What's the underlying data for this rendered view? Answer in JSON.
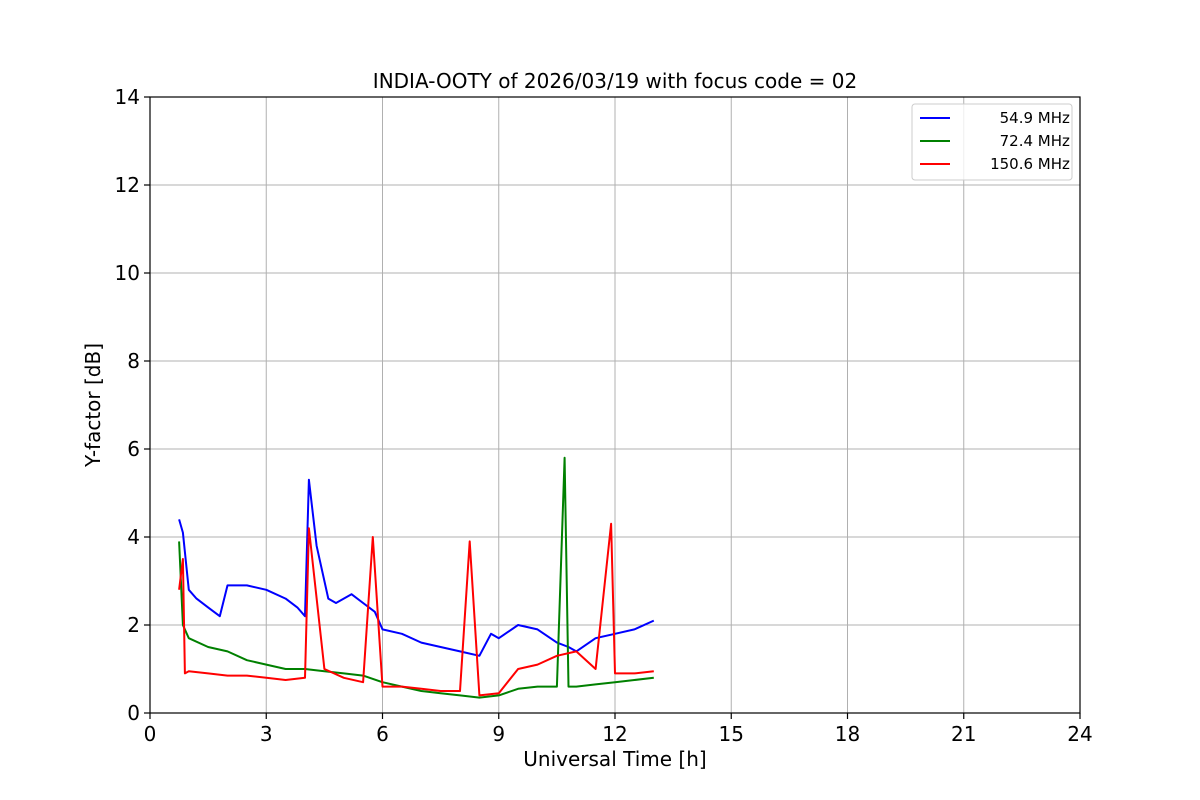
{
  "chart_data": {
    "type": "line",
    "title": "INDIA-OOTY of 2026/03/19 with focus code = 02",
    "xlabel": "Universal Time [h]",
    "ylabel": "Y-factor [dB]",
    "xlim": [
      0,
      24
    ],
    "ylim": [
      0,
      14
    ],
    "xticks": [
      0,
      3,
      6,
      9,
      12,
      15,
      18,
      21,
      24
    ],
    "yticks": [
      0,
      2,
      4,
      6,
      8,
      10,
      12,
      14
    ],
    "grid": true,
    "legend_position": "top-right",
    "series": [
      {
        "name": "54.9 MHz",
        "legend_label": "  54.9 MHz",
        "color": "#0000ff",
        "x": [
          0.75,
          0.85,
          1.0,
          1.2,
          1.5,
          1.8,
          2.0,
          2.5,
          3.0,
          3.5,
          3.8,
          4.0,
          4.1,
          4.3,
          4.6,
          4.8,
          5.2,
          5.5,
          5.8,
          6.0,
          6.5,
          7.0,
          7.5,
          8.0,
          8.5,
          8.8,
          9.0,
          9.5,
          10.0,
          10.5,
          10.8,
          11.0,
          11.5,
          12.0,
          12.5,
          13.0
        ],
        "y": [
          4.4,
          4.1,
          2.8,
          2.6,
          2.4,
          2.2,
          2.9,
          2.9,
          2.8,
          2.6,
          2.4,
          2.2,
          5.3,
          3.8,
          2.6,
          2.5,
          2.7,
          2.5,
          2.3,
          1.9,
          1.8,
          1.6,
          1.5,
          1.4,
          1.3,
          1.8,
          1.7,
          2.0,
          1.9,
          1.6,
          1.5,
          1.4,
          1.7,
          1.8,
          1.9,
          2.1
        ]
      },
      {
        "name": "72.4 MHz",
        "legend_label": "  72.4 MHz",
        "color": "#008000",
        "x": [
          0.75,
          0.85,
          1.0,
          1.5,
          2.0,
          2.5,
          3.0,
          3.5,
          4.0,
          4.5,
          5.0,
          5.5,
          6.0,
          6.5,
          7.0,
          7.5,
          8.0,
          8.5,
          9.0,
          9.5,
          10.0,
          10.5,
          10.7,
          10.8,
          11.0,
          11.5,
          12.0,
          12.5,
          13.0
        ],
        "y": [
          3.9,
          2.0,
          1.7,
          1.5,
          1.4,
          1.2,
          1.1,
          1.0,
          1.0,
          0.95,
          0.9,
          0.85,
          0.7,
          0.6,
          0.5,
          0.45,
          0.4,
          0.35,
          0.4,
          0.55,
          0.6,
          0.6,
          5.8,
          0.6,
          0.6,
          0.65,
          0.7,
          0.75,
          0.8
        ]
      },
      {
        "name": "150.6 MHz",
        "legend_label": "150.6 MHz",
        "color": "#ff0000",
        "x": [
          0.75,
          0.85,
          0.9,
          1.0,
          1.5,
          2.0,
          2.5,
          3.0,
          3.5,
          4.0,
          4.1,
          4.5,
          5.0,
          5.5,
          5.75,
          6.0,
          6.5,
          7.0,
          7.5,
          8.0,
          8.25,
          8.5,
          9.0,
          9.5,
          10.0,
          10.5,
          11.0,
          11.5,
          11.9,
          12.0,
          12.5,
          13.0
        ],
        "y": [
          2.8,
          3.5,
          0.9,
          0.95,
          0.9,
          0.85,
          0.85,
          0.8,
          0.75,
          0.8,
          4.2,
          1.0,
          0.8,
          0.7,
          4.0,
          0.6,
          0.6,
          0.55,
          0.5,
          0.5,
          3.9,
          0.4,
          0.45,
          1.0,
          1.1,
          1.3,
          1.4,
          1.0,
          4.3,
          0.9,
          0.9,
          0.95
        ]
      }
    ]
  }
}
